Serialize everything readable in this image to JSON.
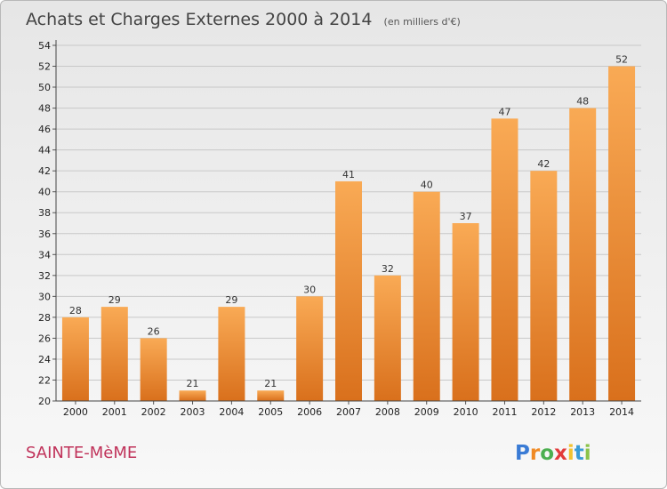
{
  "chart_data": {
    "type": "bar",
    "title": "Achats et Charges Externes 2000 à 2014",
    "subtitle": "(en milliers d'€)",
    "categories": [
      "2000",
      "2001",
      "2002",
      "2003",
      "2004",
      "2005",
      "2006",
      "2007",
      "2008",
      "2009",
      "2010",
      "2011",
      "2012",
      "2013",
      "2014"
    ],
    "values": [
      28,
      29,
      26,
      21,
      29,
      21,
      30,
      41,
      32,
      40,
      37,
      47,
      42,
      48,
      52
    ],
    "ylim": [
      20,
      54
    ],
    "yticks": [
      20,
      22,
      24,
      26,
      28,
      30,
      32,
      34,
      36,
      38,
      40,
      42,
      44,
      46,
      48,
      50,
      52,
      54
    ],
    "grid": true,
    "xlabel": "",
    "ylabel": "",
    "bar_color_light": "#f9aa55",
    "bar_color_dark": "#d9701c"
  },
  "location": "SAINTE-MèME",
  "brand": {
    "letters": [
      "P",
      "r",
      "o",
      "x",
      "i",
      "t",
      "i"
    ],
    "colors": [
      "#3a7bd5",
      "#f08a24",
      "#4caf50",
      "#e23b3b",
      "#f2c230",
      "#3a9bd5",
      "#8bc34a"
    ]
  }
}
